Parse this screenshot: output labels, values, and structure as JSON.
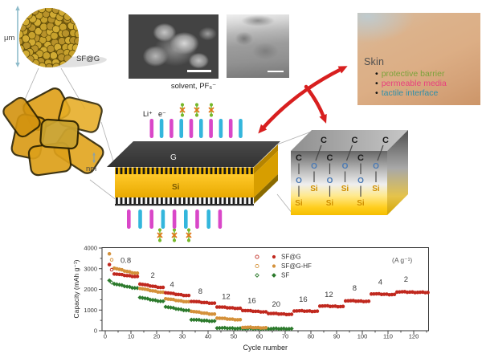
{
  "figure": {
    "scale_top_label": "μm",
    "scale_bottom_label": "nm",
    "sphere_label": "SF@G",
    "solvent_label": "solvent, PF₆⁻",
    "lithium_label": "Li⁺",
    "electron_label": "e⁻",
    "graphene_label": "G",
    "silicon_label": "Si",
    "chem": {
      "carbon": "C",
      "oxygen": "O",
      "silicon": "Si"
    },
    "skin": {
      "title": "Skin",
      "bullets": [
        {
          "text": "protective barrier",
          "color": "#7ca23b"
        },
        {
          "text": "permeable media",
          "color": "#e8417e"
        },
        {
          "text": "tactile interface",
          "color": "#2e8fa8"
        }
      ]
    },
    "colors": {
      "cation_bar": "#d947c8",
      "anion_bar": "#33b6dc",
      "arrow_red": "#d81f1f",
      "graphene_dark": "#3d3d3d",
      "silicon_yellow": "#f2b300",
      "gold_flake": "#dfa11c",
      "molecule_green": "#76b82a",
      "molecule_orange": "#e07818",
      "oxygen_blue": "#4a7ab5",
      "chem_si_gold": "#d08f00"
    }
  },
  "chart_data": {
    "type": "scatter",
    "title": "",
    "xlabel": "Cycle number",
    "ylabel": "Capacity (mAh g⁻¹)",
    "rate_unit_label": "(A g⁻¹)",
    "xlim": [
      0,
      126
    ],
    "ylim": [
      0,
      4000
    ],
    "x_major_tick": 10,
    "x_minor_tick": 5,
    "y_major_tick": 1000,
    "y_minor_tick": 500,
    "grid": false,
    "legend_position": "top-right-inside",
    "series": [
      {
        "name": "SF@G",
        "color": "#c0281e",
        "marker": "circle"
      },
      {
        "name": "SF@G-HF",
        "color": "#d4913a",
        "marker": "circle"
      },
      {
        "name": "SF",
        "color": "#2c7a2c",
        "marker": "diamond"
      }
    ],
    "segments": [
      {
        "rate": "0.8",
        "start": 3,
        "end": 13,
        "values": {
          "SF@G": [
            2760,
            2620
          ],
          "SF@G-HF": [
            3040,
            2780
          ],
          "SF": [
            2280,
            2060
          ]
        }
      },
      {
        "rate": "2",
        "start": 13,
        "end": 23,
        "values": {
          "SF@G": [
            2270,
            2090
          ],
          "SF@G-HF": [
            2060,
            1860
          ],
          "SF": [
            1620,
            1420
          ]
        }
      },
      {
        "rate": "4",
        "start": 23,
        "end": 33,
        "values": {
          "SF@G": [
            1850,
            1700
          ],
          "SF@G-HF": [
            1560,
            1400
          ],
          "SF": [
            1170,
            980
          ]
        }
      },
      {
        "rate": "8",
        "start": 33,
        "end": 43,
        "values": {
          "SF@G": [
            1430,
            1330
          ],
          "SF@G-HF": [
            950,
            800
          ],
          "SF": [
            545,
            465
          ]
        }
      },
      {
        "rate": "12",
        "start": 43,
        "end": 53,
        "values": {
          "SF@G": [
            1160,
            1080
          ],
          "SF@G-HF": [
            620,
            530
          ],
          "SF": [
            140,
            110
          ]
        }
      },
      {
        "rate": "16",
        "start": 53,
        "end": 63,
        "values": {
          "SF@G": [
            990,
            910
          ],
          "SF@G-HF": [
            170,
            140
          ],
          "SF": [
            110,
            100
          ]
        }
      },
      {
        "rate": "20",
        "start": 63,
        "end": 73,
        "values": {
          "SF@G": [
            845,
            790
          ],
          "SF": [
            100,
            95
          ]
        }
      },
      {
        "rate": "16",
        "start": 73,
        "end": 83,
        "values": {
          "SF@G": [
            965,
            940
          ]
        }
      },
      {
        "rate": "12",
        "start": 83,
        "end": 93,
        "values": {
          "SF@G": [
            1205,
            1170
          ]
        }
      },
      {
        "rate": "8",
        "start": 93,
        "end": 103,
        "values": {
          "SF@G": [
            1455,
            1420
          ]
        }
      },
      {
        "rate": "4",
        "start": 103,
        "end": 113,
        "values": {
          "SF@G": [
            1790,
            1750
          ]
        }
      },
      {
        "rate": "2",
        "start": 113,
        "end": 126,
        "values": {
          "SF@G": [
            1885,
            1850
          ]
        }
      }
    ],
    "initial_points": [
      {
        "series": "SF@G-HF",
        "cycle": 1.6,
        "value": 3720,
        "open": false
      },
      {
        "series": "SF@G-HF",
        "cycle": 2.5,
        "value": 3430,
        "open": true
      },
      {
        "series": "SF@G",
        "cycle": 1.6,
        "value": 3200,
        "open": false
      },
      {
        "series": "SF@G",
        "cycle": 2.5,
        "value": 2950,
        "open": true
      },
      {
        "series": "SF",
        "cycle": 1.6,
        "value": 2430,
        "open": false
      },
      {
        "series": "SF",
        "cycle": 2.5,
        "value": 2330,
        "open": true
      }
    ],
    "rate_labels": [
      {
        "text": "0.8",
        "cycle": 8,
        "value": 3280
      },
      {
        "text": "2",
        "cycle": 18.5,
        "value": 2560
      },
      {
        "text": "4",
        "cycle": 26,
        "value": 2120
      },
      {
        "text": "8",
        "cycle": 37,
        "value": 1790
      },
      {
        "text": "12",
        "cycle": 47,
        "value": 1530
      },
      {
        "text": "16",
        "cycle": 57,
        "value": 1340
      },
      {
        "text": "20",
        "cycle": 66.5,
        "value": 1160
      },
      {
        "text": "16",
        "cycle": 77,
        "value": 1400
      },
      {
        "text": "12",
        "cycle": 87,
        "value": 1640
      },
      {
        "text": "8",
        "cycle": 97,
        "value": 1940
      },
      {
        "text": "4",
        "cycle": 107,
        "value": 2240
      },
      {
        "text": "2",
        "cycle": 117,
        "value": 2360
      }
    ],
    "x_tick_labels": [
      0,
      10,
      20,
      30,
      40,
      50,
      60,
      70,
      80,
      90,
      100,
      110,
      120
    ],
    "y_tick_labels": [
      0,
      1000,
      2000,
      3000,
      4000
    ]
  }
}
